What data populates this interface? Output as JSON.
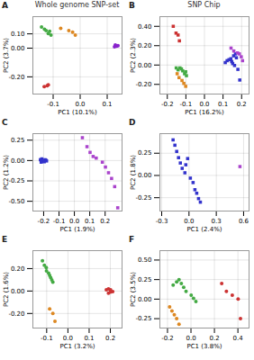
{
  "chart_data": [
    {
      "type": "scatter",
      "title": "Whole genome SNP-set",
      "annotations": [
        "A"
      ],
      "xlabel": "PC1 (10.1%)",
      "ylabel": "PC2 (3.7%)",
      "xlim": [
        -0.175,
        0.155
      ],
      "ylim": [
        -0.32,
        0.22
      ],
      "xticks": [
        -0.1,
        {
          "value": 0.0,
          "label": "0.0"
        },
        0.1
      ],
      "yticks": [
        {
          "value": -0.2,
          "label": "-0.20"
        },
        {
          "value": 0.0,
          "label": "0.00"
        },
        {
          "value": 0.1,
          "label": "0.10"
        }
      ],
      "marker": "circle",
      "grid": true,
      "series": [
        {
          "color": "#cc3333",
          "x": [
            -0.133,
            -0.122,
            -0.118
          ],
          "y": [
            -0.268,
            -0.262,
            -0.255
          ]
        },
        {
          "color": "#44aa44",
          "x": [
            -0.143,
            -0.132,
            -0.126,
            -0.113,
            -0.118,
            -0.108
          ],
          "y": [
            0.148,
            0.132,
            0.122,
            0.118,
            0.102,
            0.092
          ]
        },
        {
          "color": "#dd8822",
          "x": [
            -0.072,
            -0.042,
            -0.028,
            -0.018
          ],
          "y": [
            0.138,
            0.122,
            0.112,
            0.092
          ]
        },
        {
          "color": "#8822cc",
          "x": [
            0.13,
            0.14,
            0.135,
            0.127
          ],
          "y": [
            0.022,
            0.018,
            0.015,
            0.01
          ]
        }
      ]
    },
    {
      "type": "scatter",
      "title": "SNP Chip",
      "annotations": [
        "B"
      ],
      "xlabel": "PC1 (16.2%)",
      "ylabel": "PC2 (2.3%)",
      "xlim": [
        -0.24,
        0.24
      ],
      "ylim": [
        -0.3,
        0.5
      ],
      "xticks": [
        -0.2,
        -0.1,
        {
          "value": 0.0,
          "label": "0.0"
        },
        0.1,
        0.2
      ],
      "yticks": [
        {
          "value": -0.2,
          "label": "-0.20"
        },
        {
          "value": 0.0,
          "label": "0.00"
        },
        {
          "value": 0.2,
          "label": "0.20"
        },
        {
          "value": 0.4,
          "label": "0.40"
        }
      ],
      "marker": "square",
      "grid": true,
      "series": [
        {
          "color": "#cc3333",
          "x": [
            -0.168,
            -0.153,
            -0.142,
            -0.135
          ],
          "y": [
            0.4,
            0.33,
            0.31,
            0.25
          ]
        },
        {
          "color": "#44aa44",
          "x": [
            -0.152,
            -0.142,
            -0.132,
            -0.124,
            -0.117,
            -0.107,
            -0.101,
            -0.097
          ],
          "y": [
            -0.03,
            -0.05,
            -0.03,
            -0.04,
            -0.06,
            -0.09,
            -0.07,
            -0.11
          ]
        },
        {
          "color": "#dd8822",
          "x": [
            -0.147,
            -0.137,
            -0.121,
            -0.111,
            -0.101
          ],
          "y": [
            -0.09,
            -0.13,
            -0.16,
            -0.19,
            -0.22
          ]
        },
        {
          "color": "#3333cc",
          "x": [
            0.112,
            0.122,
            0.132,
            0.142,
            0.147,
            0.152,
            0.162,
            0.157,
            0.167,
            0.172,
            0.18,
            0.19
          ],
          "y": [
            0.025,
            0.045,
            0.055,
            0.065,
            0.035,
            0.015,
            -0.005,
            0.095,
            0.115,
            0.075,
            -0.045,
            -0.155
          ]
        },
        {
          "color": "#aa44cc",
          "x": [
            0.143,
            0.158,
            0.178,
            0.188,
            0.198,
            0.205
          ],
          "y": [
            0.175,
            0.145,
            0.125,
            0.115,
            0.085,
            0.045
          ]
        }
      ]
    },
    {
      "type": "scatter",
      "annotations": [
        "C"
      ],
      "xlabel": "PC1 (1.9%)",
      "ylabel": "PC2 (1.2%)",
      "xlim": [
        -0.27,
        0.31
      ],
      "ylim": [
        -0.62,
        0.33
      ],
      "xticks": [
        -0.2,
        -0.1,
        {
          "value": 0.0,
          "label": "0.0"
        },
        0.1,
        0.2
      ],
      "yticks": [
        {
          "value": -0.5,
          "label": "-0.50"
        },
        -0.25,
        {
          "value": 0.0,
          "label": "0.00"
        },
        0.25
      ],
      "marker": "square",
      "grid": true,
      "series": [
        {
          "color": "#3333cc",
          "x": [
            -0.221,
            -0.212,
            -0.206,
            -0.216,
            -0.201,
            -0.191,
            -0.196,
            -0.186,
            -0.181
          ],
          "y": [
            0.01,
            0.02,
            -0.01,
            -0.02,
            0.0,
            0.01,
            -0.015,
            0.005,
            -0.005
          ]
        },
        {
          "color": "#aa44cc",
          "x": [
            0.052,
            0.082,
            0.102,
            0.122,
            0.142,
            0.182,
            0.202,
            0.222,
            0.242,
            0.262,
            0.282
          ],
          "y": [
            0.28,
            0.17,
            0.1,
            0.05,
            0.03,
            -0.02,
            -0.08,
            -0.15,
            -0.22,
            -0.32,
            -0.58
          ]
        }
      ]
    },
    {
      "type": "scatter",
      "annotations": [
        "D"
      ],
      "xlabel": "PC1 (2.4%)",
      "ylabel": "PC2 (1.8%)",
      "xlim": [
        -0.32,
        0.66
      ],
      "ylim": [
        -0.4,
        0.47
      ],
      "xticks": [
        -0.3,
        {
          "value": 0.0,
          "label": "0.0"
        },
        0.3,
        0.6
      ],
      "yticks": [
        -0.25,
        {
          "value": 0.0,
          "label": "0.00"
        },
        0.25
      ],
      "marker": "square",
      "grid": true,
      "series": [
        {
          "color": "#3333cc",
          "x": [
            -0.175,
            -0.155,
            -0.135,
            -0.115,
            -0.095,
            -0.075,
            -0.045,
            -0.035,
            -0.015,
            0.015,
            0.045,
            0.065,
            0.085,
            0.105,
            0.125
          ],
          "y": [
            0.4,
            0.34,
            0.27,
            0.2,
            0.14,
            0.08,
            0.03,
            0.12,
            0.19,
            -0.03,
            -0.08,
            -0.16,
            -0.2,
            -0.26,
            -0.3
          ]
        },
        {
          "color": "#aa44cc",
          "x": [
            0.56
          ],
          "y": [
            0.1
          ]
        }
      ]
    },
    {
      "type": "scatter",
      "annotations": [
        "E"
      ],
      "xlabel": "PC1 (3.2%)",
      "ylabel": "PC2 (1.6%)",
      "xlim": [
        -0.165,
        0.255
      ],
      "ylim": [
        -0.33,
        0.36
      ],
      "xticks": [
        -0.1,
        {
          "value": 0.0,
          "label": "0.0"
        },
        0.1,
        0.2
      ],
      "yticks": [
        {
          "value": -0.2,
          "label": "-0.20"
        },
        {
          "value": 0.0,
          "label": "0.00"
        },
        {
          "value": 0.2,
          "label": "0.20"
        }
      ],
      "marker": "circle",
      "grid": true,
      "series": [
        {
          "color": "#44aa44",
          "x": [
            -0.12,
            -0.111,
            -0.102,
            -0.101,
            -0.091,
            -0.086,
            -0.081,
            -0.076,
            -0.071
          ],
          "y": [
            0.27,
            0.23,
            0.21,
            0.18,
            0.16,
            0.14,
            0.12,
            0.1,
            0.08
          ]
        },
        {
          "color": "#dd8822",
          "x": [
            -0.086,
            -0.071,
            -0.061
          ],
          "y": [
            -0.16,
            -0.2,
            -0.27
          ]
        },
        {
          "color": "#cc3333",
          "x": [
            0.181,
            0.191,
            0.201,
            0.211,
            0.201,
            0.191
          ],
          "y": [
            0.01,
            0.02,
            0.01,
            -0.005,
            -0.01,
            -0.02
          ]
        }
      ]
    },
    {
      "type": "scatter",
      "annotations": [
        "F"
      ],
      "xlabel": "PC1 (3.8%)",
      "ylabel": "PC2 (3.5%)",
      "xlim": [
        -0.265,
        0.495
      ],
      "ylim": [
        -0.37,
        0.62
      ],
      "xticks": [
        -0.2,
        {
          "value": 0.0,
          "label": "0.0"
        },
        0.2,
        0.4
      ],
      "yticks": [
        -0.25,
        {
          "value": 0.0,
          "label": "0.00"
        },
        0.25,
        {
          "value": 0.5,
          "label": "0.50"
        }
      ],
      "marker": "circle",
      "grid": true,
      "series": [
        {
          "color": "#44aa44",
          "x": [
            -0.152,
            -0.122,
            -0.102,
            -0.082,
            -0.062,
            -0.042,
            0.002,
            0.022,
            0.042
          ],
          "y": [
            0.18,
            0.22,
            0.25,
            0.2,
            0.15,
            0.1,
            0.05,
            0.01,
            -0.03
          ]
        },
        {
          "color": "#dd8822",
          "x": [
            -0.182,
            -0.162,
            -0.142,
            -0.122,
            -0.102
          ],
          "y": [
            -0.1,
            -0.15,
            -0.2,
            -0.25,
            -0.32
          ]
        },
        {
          "color": "#cc3333",
          "x": [
            0.262,
            0.302,
            0.352,
            0.402,
            0.422
          ],
          "y": [
            0.2,
            0.1,
            0.05,
            0.0,
            -0.25
          ]
        }
      ]
    }
  ]
}
